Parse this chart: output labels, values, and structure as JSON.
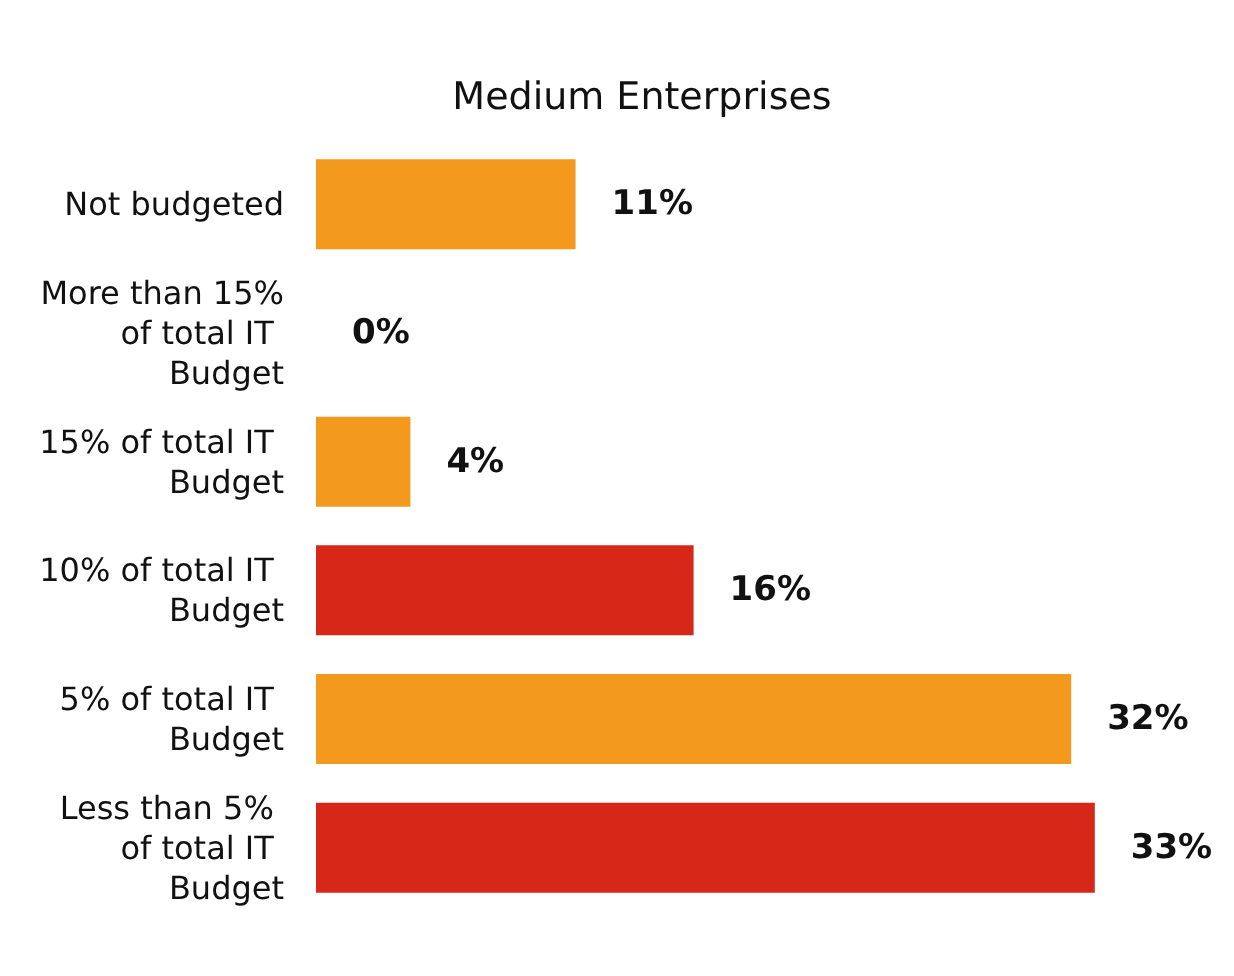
{
  "chart_data": {
    "type": "bar",
    "orientation": "horizontal",
    "title": "Medium Enterprises",
    "categories": [
      "Not budgeted",
      "More than 15% of total IT Budget",
      "15% of total IT Budget",
      "10% of total IT Budget",
      "5% of total IT Budget",
      "Less than 5% of total IT Budget"
    ],
    "values": [
      11,
      0,
      4,
      16,
      32,
      33
    ],
    "colors": [
      "#f39a1e",
      "#f39a1e",
      "#f39a1e",
      "#d62718",
      "#f39a1e",
      "#d62718"
    ],
    "value_labels": [
      "11%",
      "0%",
      "4%",
      "16%",
      "32%",
      "33%"
    ]
  }
}
